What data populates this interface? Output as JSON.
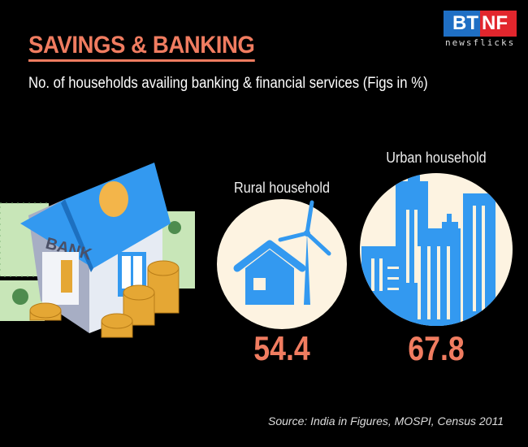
{
  "title": "SAVINGS & BANKING",
  "subtitle": "No. of households availing banking & financial services (Figs in %)",
  "logo": {
    "left": "BT",
    "right": "NF",
    "tagline": "newsflicks",
    "colors": {
      "left": "#1f6fc4",
      "right": "#e2262d"
    }
  },
  "illustration": {
    "bank_sign": "BANK"
  },
  "stats": [
    {
      "label": "Rural household",
      "value": "54.4",
      "icon": "house-windmill-icon"
    },
    {
      "label": "Urban household",
      "value": "67.8",
      "icon": "city-buildings-icon"
    }
  ],
  "source": "Source: India in Figures, MOSPI, Census 2011",
  "colors": {
    "accent": "#f07c60",
    "icon_blue": "#3399f0",
    "circle_bg": "#fdf3e1"
  }
}
